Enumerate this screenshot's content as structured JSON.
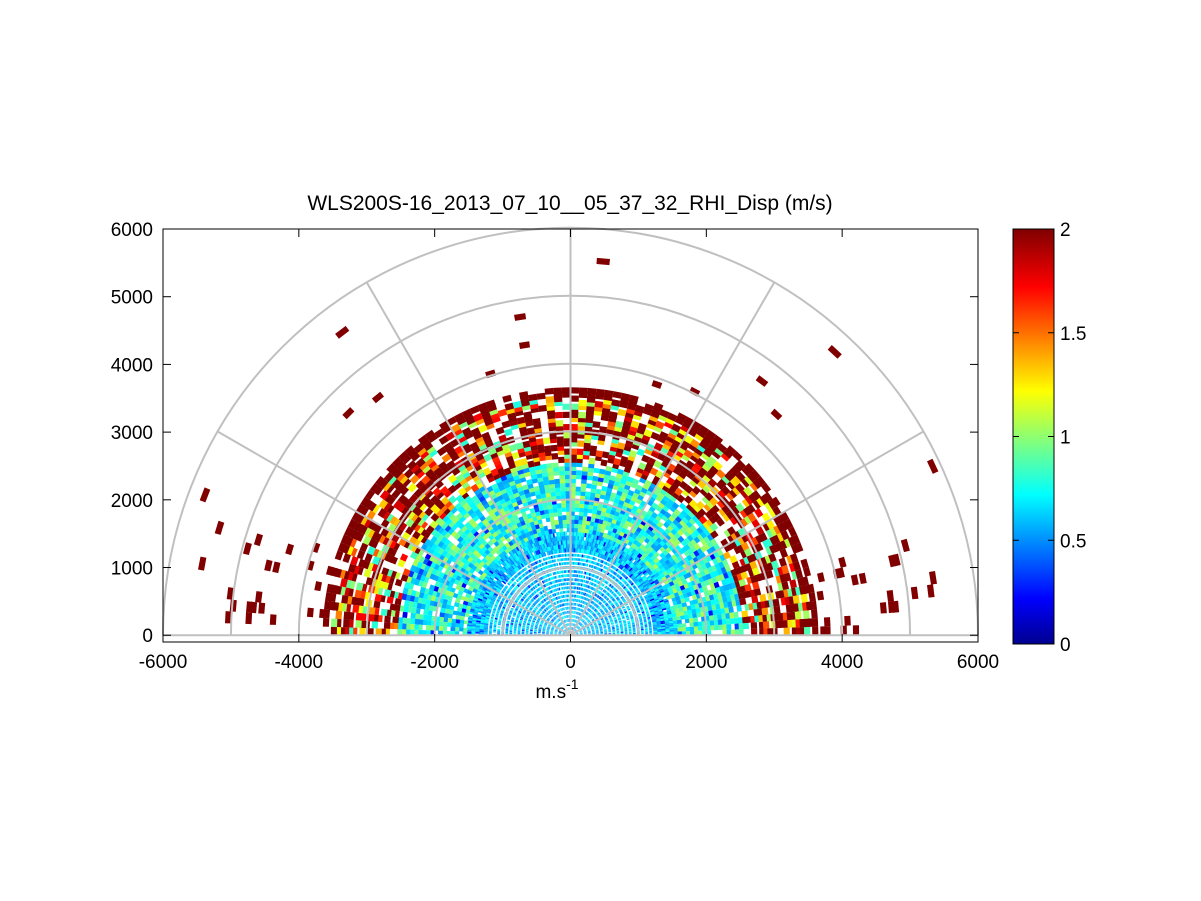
{
  "chart_data": {
    "type": "heatmap",
    "subtype": "polar-rhi-scan",
    "title": "WLS200S-16_2013_07_10__05_37_32_RHI_Disp (m/s)",
    "xlabel_base": "m.s",
    "xlabel_exp": "-1",
    "ylabel": "",
    "xlim": [
      -6000,
      6000
    ],
    "ylim": [
      -100,
      6000
    ],
    "xticks": [
      -6000,
      -4000,
      -2000,
      0,
      2000,
      4000,
      6000
    ],
    "xtick_labels": [
      "-6000",
      "-4000",
      "-2000",
      "0",
      "2000",
      "4000",
      "6000"
    ],
    "yticks": [
      0,
      1000,
      2000,
      3000,
      4000,
      5000,
      6000
    ],
    "ytick_labels": [
      "0",
      "1000",
      "2000",
      "3000",
      "4000",
      "5000",
      "6000"
    ],
    "polar_grid": {
      "range_rings": [
        1000,
        2000,
        3000,
        4000,
        5000,
        6000
      ],
      "spoke_angles_deg": [
        0,
        30,
        60,
        90,
        120,
        150,
        180
      ],
      "color": "#c0c0c0"
    },
    "colorbar": {
      "min": 0,
      "max": 2,
      "ticks": [
        0,
        0.5,
        1,
        1.5,
        2
      ],
      "tick_labels": [
        "0",
        "0.5",
        "1",
        "1.5",
        "2"
      ],
      "colormap": "jet"
    },
    "field_description_bands": [
      {
        "range": [
          0,
          1500
        ],
        "value_range": [
          0.5,
          0.8
        ]
      },
      {
        "range": [
          1500,
          2500
        ],
        "value_range": [
          0.55,
          1.1
        ]
      },
      {
        "range": [
          2500,
          3500
        ],
        "value_range": [
          0.8,
          2.0
        ]
      },
      {
        "range": [
          3500,
          6000
        ],
        "value_range": [
          2.0,
          2.0
        ]
      }
    ]
  }
}
